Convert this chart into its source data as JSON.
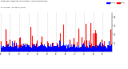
{
  "n_points": 1440,
  "red_color": "#ff0000",
  "blue_color": "#0000ff",
  "bg_color": "#ffffff",
  "grid_color": "#aaaaaa",
  "ymin": 0,
  "ymax": 4.5,
  "yticks": [
    1,
    2,
    3,
    4
  ],
  "legend_labels": [
    "Actual",
    "Median"
  ],
  "seed": 42,
  "title_line1": "Milwaukee Weather Wind Speed  Actual and Median",
  "title_line2": "by Minute  (24 Hours) (Old)"
}
